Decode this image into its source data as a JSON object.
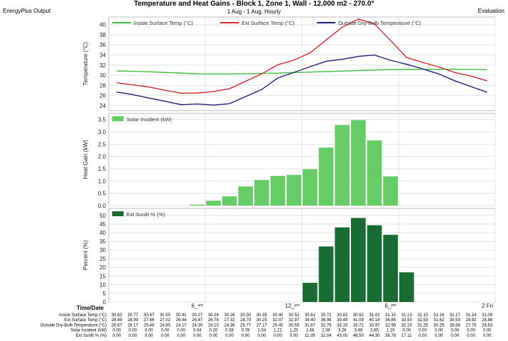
{
  "header": {
    "left": "EnergyPlus Output",
    "title": "Temperature and Heat Gains - Block 1, Zone 1, Wall - 12.000 m2 - 270.0°",
    "subtitle": "1 Aug - 1 Aug, Hourly",
    "right": "Evaluation"
  },
  "x_axis": {
    "label": "Time/Date",
    "ticks": [
      {
        "hour": 6,
        "label": "6_ᵃᵐ"
      },
      {
        "hour": 12,
        "label": "12_ᵖᵐ"
      },
      {
        "hour": 18,
        "label": "6_ᵖᵐ"
      },
      {
        "hour": 24,
        "label": "2 Fri"
      }
    ]
  },
  "colors": {
    "inside": "#3dbf3d",
    "exterior": "#d42a2a",
    "outside_db": "#1f1f7a",
    "solar": "#66cc66",
    "sunlit": "#1a6b33",
    "grid": "#e3e3e3"
  },
  "chart_data": [
    {
      "type": "line",
      "ylabel": "Temperature (°C)",
      "ylim": [
        23,
        41.5
      ],
      "yticks": [
        24,
        26,
        28,
        30,
        32,
        34,
        36,
        38,
        40
      ],
      "x": [
        0.5,
        1.5,
        2.5,
        3.5,
        4.5,
        5.5,
        6.5,
        7.5,
        8.5,
        9.5,
        10.5,
        11.5,
        12.5,
        13.5,
        14.5,
        15.5,
        16.5,
        17.5,
        18.5,
        19.5,
        20.5,
        21.5,
        22.5,
        23.5
      ],
      "series": [
        {
          "name": "Inside Surface Temp (°C)",
          "color_key": "inside",
          "values": [
            30.83,
            30.77,
            30.67,
            30.55,
            30.41,
            30.27,
            30.26,
            30.26,
            30.3,
            30.35,
            30.4,
            30.52,
            30.61,
            30.72,
            30.82,
            30.92,
            31.02,
            31.1,
            31.13,
            31.15,
            31.16,
            31.17,
            31.14,
            31.09
          ]
        },
        {
          "name": "Ext Surface Temp (°C)",
          "color_key": "exterior",
          "values": [
            28.49,
            28.09,
            27.66,
            27.02,
            26.44,
            26.47,
            26.78,
            27.32,
            28.79,
            30.25,
            32.07,
            32.97,
            34.4,
            36.96,
            39.48,
            41.09,
            40.14,
            36.85,
            33.5,
            32.53,
            31.62,
            30.53,
            29.82,
            28.88
          ]
        },
        {
          "name": "Outside Dry-Bulb Temperature (°C)",
          "color_key": "outside_db",
          "values": [
            26.67,
            26.17,
            25.48,
            24.85,
            24.17,
            24.3,
            24.1,
            24.36,
            25.77,
            27.17,
            29.45,
            30.55,
            31.67,
            32.75,
            33.15,
            33.72,
            33.97,
            32.95,
            32.15,
            31.25,
            30.25,
            28.88,
            27.75,
            26.63
          ]
        }
      ]
    },
    {
      "type": "bar",
      "ylabel": "Heat Gain (kW)",
      "ylim": [
        0,
        3.75
      ],
      "yticks": [
        0.0,
        0.5,
        1.0,
        1.5,
        2.0,
        2.5,
        3.0,
        3.5
      ],
      "series": [
        {
          "name": "Solar Incident (kW)",
          "color_key": "solar",
          "values": [
            0.0,
            0.0,
            0.0,
            0.0,
            0.0,
            0.04,
            0.2,
            0.38,
            0.78,
            1.04,
            1.21,
            1.25,
            1.48,
            2.36,
            3.28,
            3.48,
            2.65,
            1.19,
            0.0,
            0.0,
            0.0,
            0.0,
            0.0,
            0.0
          ]
        }
      ]
    },
    {
      "type": "bar",
      "ylabel": "Percent (%)",
      "ylim": [
        0,
        54
      ],
      "yticks": [
        0,
        5,
        10,
        15,
        20,
        25,
        30,
        35,
        40,
        45,
        50
      ],
      "series": [
        {
          "name": "Ext Sunlit % (%)",
          "color_key": "sunlit",
          "values": [
            0.0,
            0.0,
            0.0,
            0.0,
            0.0,
            0.0,
            0.0,
            0.0,
            0.0,
            0.0,
            0.0,
            0.0,
            11.09,
            32.04,
            43.05,
            48.5,
            44.3,
            38.78,
            17.11,
            0.0,
            0.0,
            0.0,
            0.0,
            0.0
          ]
        }
      ]
    }
  ],
  "table": {
    "rows": [
      {
        "label": "Inside Surface Temp (°C)",
        "values": [
          "30.83",
          "30.77",
          "30.67",
          "30.55",
          "30.41",
          "30.27",
          "30.26",
          "30.26",
          "30.30",
          "30.35",
          "30.40",
          "30.52",
          "30.61",
          "30.72",
          "30.82",
          "30.92",
          "31.02",
          "31.10",
          "31.13",
          "31.15",
          "31.16",
          "31.17",
          "31.14",
          "31.09"
        ]
      },
      {
        "label": "Ext Surface Temp (°C)",
        "values": [
          "28.49",
          "28.09",
          "27.66",
          "27.02",
          "26.44",
          "26.47",
          "26.78",
          "27.32",
          "28.79",
          "30.25",
          "32.07",
          "32.97",
          "34.40",
          "36.96",
          "39.48",
          "41.09",
          "40.14",
          "36.85",
          "33.50",
          "32.53",
          "31.62",
          "30.53",
          "29.82",
          "28.88"
        ]
      },
      {
        "label": "Outside Dry-Bulb Temperature (°C)",
        "values": [
          "26.67",
          "26.17",
          "25.48",
          "24.85",
          "24.17",
          "24.30",
          "24.10",
          "24.36",
          "25.77",
          "27.17",
          "29.45",
          "30.55",
          "31.67",
          "32.75",
          "33.15",
          "33.72",
          "33.97",
          "32.95",
          "32.15",
          "31.25",
          "30.25",
          "28.88",
          "27.75",
          "26.63"
        ]
      },
      {
        "label": "Solar Incident (kW)",
        "values": [
          "0.00",
          "0.00",
          "0.00",
          "0.00",
          "0.00",
          "0.04",
          "0.20",
          "0.38",
          "0.78",
          "1.04",
          "1.21",
          "1.25",
          "1.48",
          "2.36",
          "3.28",
          "3.48",
          "2.65",
          "1.19",
          "0.00",
          "0.00",
          "0.00",
          "0.00",
          "0.00",
          "0.00"
        ]
      },
      {
        "label": "Ext Sunlit % (%)",
        "values": [
          "0.00",
          "0.00",
          "0.00",
          "0.00",
          "0.00",
          "0.00",
          "0.00",
          "0.00",
          "0.00",
          "0.00",
          "0.00",
          "0.00",
          "11.09",
          "32.04",
          "43.05",
          "48.50",
          "44.30",
          "38.78",
          "17.11",
          "0.00",
          "0.00",
          "0.00",
          "0.00",
          "0.00"
        ]
      }
    ]
  }
}
